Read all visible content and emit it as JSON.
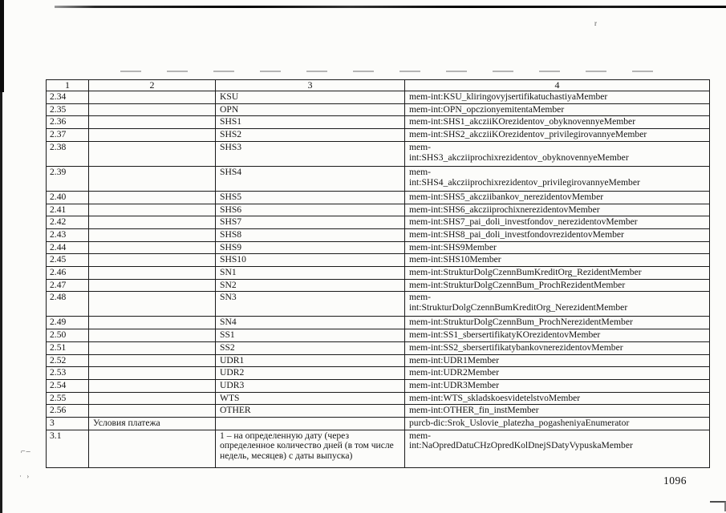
{
  "page": {
    "number": "1096"
  },
  "artifacts": {
    "speck_top": "r",
    "margin_mark_1": "⌐–",
    "margin_mark_2": "· ›"
  },
  "table": {
    "headers": [
      "1",
      "2",
      "3",
      "4"
    ],
    "rows": [
      {
        "c1": "2.34",
        "c2": "",
        "c3": "KSU",
        "c4": "mem-int:KSU_kliringovyjsertifikatuchastiyaMember",
        "c4_wrap": false
      },
      {
        "c1": "2.35",
        "c2": "",
        "c3": "OPN",
        "c4": "mem-int:OPN_opczionyemitentaMember",
        "c4_wrap": false
      },
      {
        "c1": "2.36",
        "c2": "",
        "c3": "SHS1",
        "c4": "mem-int:SHS1_akcziiKOrezidentov_obyknovennyeMember",
        "c4_wrap": false
      },
      {
        "c1": "2.37",
        "c2": "",
        "c3": "SHS2",
        "c4": "mem-int:SHS2_akcziiKOrezidentov_privilegirovannyeMember",
        "c4_wrap": false
      },
      {
        "c1": "2.38",
        "c2": "",
        "c3": "SHS3",
        "c4": "mem-int:SHS3_akcziiprochixrezidentov_obyknovennyeMember",
        "c4_wrap": true
      },
      {
        "c1": "2.39",
        "c2": "",
        "c3": "SHS4",
        "c4": "mem-int:SHS4_akcziiprochixrezidentov_privilegirovannyeMember",
        "c4_wrap": true
      },
      {
        "c1": "2.40",
        "c2": "",
        "c3": "SHS5",
        "c4": "mem-int:SHS5_akcziibankov_nerezidentovMember",
        "c4_wrap": false
      },
      {
        "c1": "2.41",
        "c2": "",
        "c3": "SHS6",
        "c4": "mem-int:SHS6_akcziiprochixnerezidentovMember",
        "c4_wrap": false
      },
      {
        "c1": "2.42",
        "c2": "",
        "c3": "SHS7",
        "c4": "mem-int:SHS7_pai_doli_investfondov_nerezidentovMember",
        "c4_wrap": false
      },
      {
        "c1": "2.43",
        "c2": "",
        "c3": "SHS8",
        "c4": "mem-int:SHS8_pai_doli_investfondovrezidentovMember",
        "c4_wrap": false
      },
      {
        "c1": "2.44",
        "c2": "",
        "c3": "SHS9",
        "c4": "mem-int:SHS9Member",
        "c4_wrap": false
      },
      {
        "c1": "2.45",
        "c2": "",
        "c3": "SHS10",
        "c4": "mem-int:SHS10Member",
        "c4_wrap": false
      },
      {
        "c1": "2.46",
        "c2": "",
        "c3": "SN1",
        "c4": "mem-int:StrukturDolgCzennBumKreditOrg_RezidentMember",
        "c4_wrap": false
      },
      {
        "c1": "2.47",
        "c2": "",
        "c3": "SN2",
        "c4": "mem-int:StrukturDolgCzennBum_ProchRezidentMember",
        "c4_wrap": false
      },
      {
        "c1": "2.48",
        "c2": "",
        "c3": "SN3",
        "c4": "mem-int:StrukturDolgCzennBumKreditOrg_NerezidentMember",
        "c4_wrap": true
      },
      {
        "c1": "2.49",
        "c2": "",
        "c3": "SN4",
        "c4": "mem-int:StrukturDolgCzennBum_ProchNerezidentMember",
        "c4_wrap": false
      },
      {
        "c1": "2.50",
        "c2": "",
        "c3": "SS1",
        "c4": "mem-int:SS1_sbersertifikatyKOrezidentovMember",
        "c4_wrap": false
      },
      {
        "c1": "2.51",
        "c2": "",
        "c3": "SS2",
        "c4": "mem-int:SS2_sbersertifikatybankovnerezidentovMember",
        "c4_wrap": false
      },
      {
        "c1": "2.52",
        "c2": "",
        "c3": "UDR1",
        "c4": "mem-int:UDR1Member",
        "c4_wrap": false
      },
      {
        "c1": "2.53",
        "c2": "",
        "c3": "UDR2",
        "c4": "mem-int:UDR2Member",
        "c4_wrap": false
      },
      {
        "c1": "2.54",
        "c2": "",
        "c3": "UDR3",
        "c4": "mem-int:UDR3Member",
        "c4_wrap": false
      },
      {
        "c1": "2.55",
        "c2": "",
        "c3": "WTS",
        "c4": "mem-int:WTS_skladskoesvidetelstvoMember",
        "c4_wrap": false
      },
      {
        "c1": "2.56",
        "c2": "",
        "c3": "OTHER",
        "c4": "mem-int:OTHER_fin_instMember",
        "c4_wrap": false
      },
      {
        "c1": "3",
        "c2": "Условия платежа",
        "c3": "",
        "c4": "purcb-dic:Srok_Uslovie_platezha_pogasheniyaEnumerator",
        "c4_wrap": false
      },
      {
        "c1": "3.1",
        "c2": "",
        "c3": "1 – на определенную дату (через определенное количество дней (в том числе недель, месяцев) с даты выпуска)",
        "c4": "mem-int:NaOpredDatuCHzOpredKolDnejSDatyVypuskaMember",
        "c4_wrap": true
      }
    ]
  }
}
